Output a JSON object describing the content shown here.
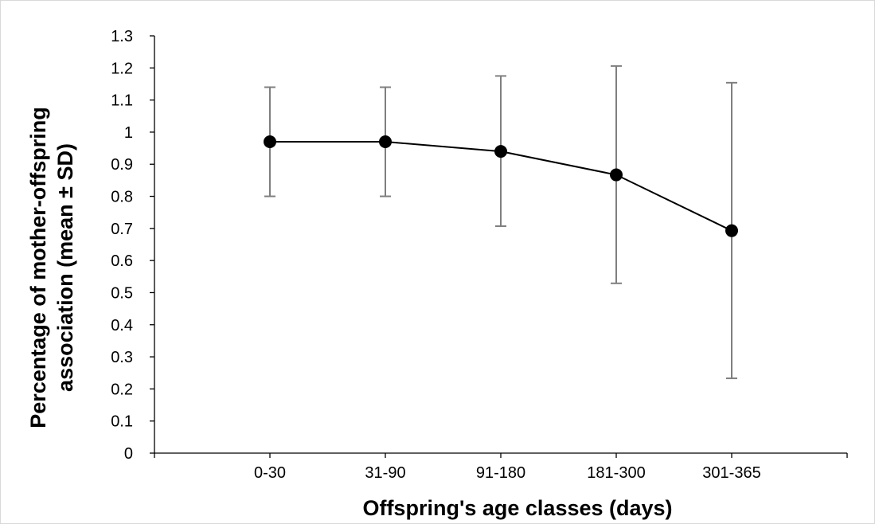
{
  "chart_data": {
    "type": "line",
    "title": "",
    "xlabel": "Offspring's age classes (days)",
    "ylabel_lines": [
      "Percentage of mother-offspring",
      "association (mean ± SD)"
    ],
    "categories": [
      "0-30",
      "31-90",
      "91-180",
      "181-300",
      "301-365"
    ],
    "series": [
      {
        "values": [
          0.97,
          0.97,
          0.94,
          0.867,
          0.693
        ],
        "error_low": [
          0.8,
          0.8,
          0.707,
          0.529,
          0.233
        ],
        "error_high": [
          1.14,
          1.14,
          1.175,
          1.206,
          1.154
        ]
      }
    ],
    "ylim": [
      0,
      1.3
    ],
    "yticks": [
      "0",
      "0.1",
      "0.2",
      "0.3",
      "0.4",
      "0.5",
      "0.6",
      "0.7",
      "0.8",
      "0.9",
      "1",
      "1.1",
      "1.2",
      "1.3"
    ],
    "grid": false,
    "legend": "none",
    "colors": {
      "line": "#000000",
      "marker": "#000000",
      "error_bar": "#7f7f7f",
      "axis": "#000000"
    }
  }
}
